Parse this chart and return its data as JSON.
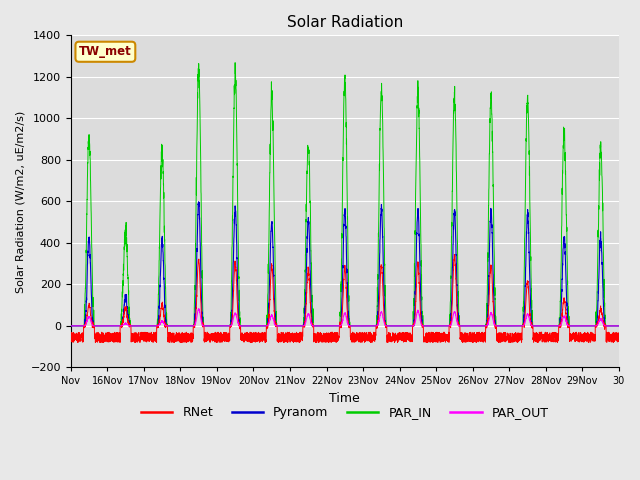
{
  "title": "Solar Radiation",
  "ylabel": "Solar Radiation (W/m2, uE/m2/s)",
  "xlabel": "Time",
  "ylim": [
    -200,
    1400
  ],
  "yticks": [
    -200,
    0,
    200,
    400,
    600,
    800,
    1000,
    1200,
    1400
  ],
  "xtick_labels": [
    "Nov",
    "16Nov",
    "17Nov",
    "18Nov",
    "19Nov",
    "20Nov",
    "21Nov",
    "22Nov",
    "23Nov",
    "24Nov",
    "25Nov",
    "26Nov",
    "27Nov",
    "28Nov",
    "29Nov",
    "30"
  ],
  "station_label": "TW_met",
  "legend_entries": [
    "RNet",
    "Pyranom",
    "PAR_IN",
    "PAR_OUT"
  ],
  "colors": {
    "RNet": "#ff0000",
    "Pyranom": "#0000cd",
    "PAR_IN": "#00cc00",
    "PAR_OUT": "#ff00ff"
  },
  "fig_bg_color": "#e8e8e8",
  "plot_bg_color": "#dcdcdc",
  "n_days": 15,
  "par_in_peaks": [
    900,
    450,
    850,
    1230,
    1210,
    1100,
    870,
    1190,
    1150,
    1140,
    1110,
    1110,
    1100,
    930,
    860
  ],
  "pyranom_peaks": [
    420,
    130,
    410,
    590,
    570,
    500,
    510,
    560,
    570,
    560,
    550,
    550,
    540,
    430,
    430
  ],
  "rnet_peaks": [
    100,
    90,
    100,
    320,
    310,
    290,
    275,
    280,
    290,
    300,
    340,
    295,
    210,
    125,
    80
  ],
  "par_out_peaks": [
    45,
    12,
    22,
    82,
    62,
    52,
    57,
    62,
    67,
    72,
    67,
    62,
    57,
    47,
    32
  ]
}
